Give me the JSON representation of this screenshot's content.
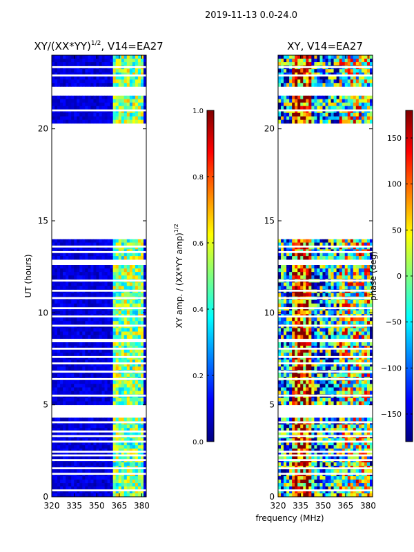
{
  "chart_data": {
    "suptitle": "2019-11-13 0.0-24.0",
    "xlabel": "frequency (MHz)",
    "panels": [
      {
        "type": "heatmap",
        "title_main": "XY/(XX*YY)",
        "title_exp": "1/2",
        "title_suffix": ", V14=EA27",
        "ylabel": "UT (hours)",
        "xlim": [
          320,
          383
        ],
        "ylim": [
          0,
          24
        ],
        "xticks": [
          320,
          335,
          350,
          365,
          380
        ],
        "yticks": [
          0,
          5,
          10,
          15,
          20
        ],
        "colorbar": {
          "label_main": "XY amp. / (XX*YY amp)",
          "label_exp": "1/2",
          "range": [
            0.0,
            1.0
          ],
          "ticks": [
            "0.0",
            "0.2",
            "0.4",
            "0.6",
            "0.8",
            "1.0"
          ],
          "colormap": "jet"
        }
      },
      {
        "type": "heatmap",
        "title_main": "XY, V14=EA27",
        "title_exp": "",
        "title_suffix": "",
        "ylabel": "",
        "xlim": [
          320,
          383
        ],
        "ylim": [
          0,
          24
        ],
        "xticks": [
          320,
          335,
          350,
          365,
          380
        ],
        "yticks": [
          0,
          5,
          10,
          15,
          20
        ],
        "colorbar": {
          "label_main": "phase (deg)",
          "label_exp": "",
          "range": [
            -180,
            180
          ],
          "ticks": [
            "-150",
            "-100",
            "-50",
            "0",
            "50",
            "100",
            "150"
          ],
          "colormap": "jet"
        }
      }
    ],
    "data_blocks_hours": [
      [
        0.0,
        4.3
      ],
      [
        5.0,
        8.4
      ],
      [
        8.6,
        12.6
      ],
      [
        12.9,
        14.0
      ],
      [
        20.3,
        21.8
      ],
      [
        22.3,
        24.0
      ]
    ],
    "flag_gaps_hours": [
      0.35,
      1.25,
      1.55,
      2.0,
      2.25,
      2.45,
      3.0,
      3.3,
      3.55,
      4.05,
      5.5,
      6.4,
      6.8,
      7.25,
      7.6,
      8.05,
      9.3,
      9.8,
      10.25,
      10.8,
      11.2,
      11.75,
      13.3,
      13.6,
      21.0,
      22.9,
      23.35
    ],
    "bright_channel_band_mhz": [
      360,
      381
    ]
  }
}
